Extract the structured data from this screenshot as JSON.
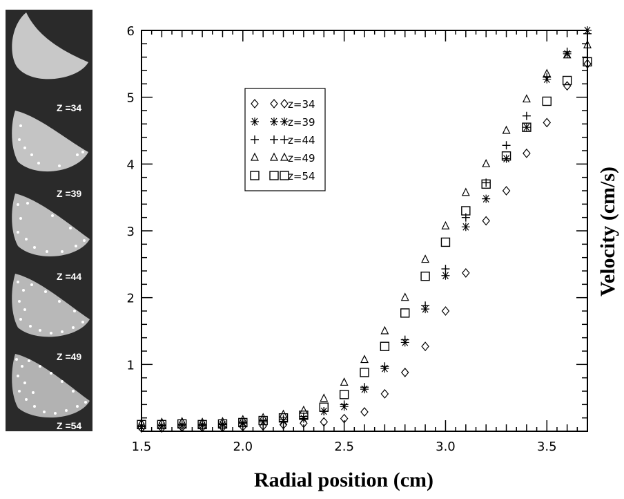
{
  "slice_labels": [
    "Z =34",
    "Z =39",
    "Z =44",
    "Z =49",
    "Z =54"
  ],
  "chart_data": {
    "type": "scatter",
    "title": "",
    "xlabel": "Radial position (cm)",
    "ylabel": "Velocity (cm/s)",
    "xlim": [
      1.5,
      3.7
    ],
    "ylim": [
      0,
      6
    ],
    "xticks": [
      "1.5",
      "2.0",
      "2.5",
      "3.0",
      "3.5"
    ],
    "yticks": [
      "1",
      "2",
      "3",
      "4",
      "5",
      "6"
    ],
    "legend_position": "upper-left",
    "grid": false,
    "x": [
      1.5,
      1.6,
      1.7,
      1.8,
      1.9,
      2.0,
      2.1,
      2.2,
      2.3,
      2.4,
      2.5,
      2.6,
      2.7,
      2.8,
      2.9,
      3.0,
      3.1,
      3.2,
      3.3,
      3.4,
      3.5,
      3.6,
      3.7
    ],
    "series": [
      {
        "name": "z=34",
        "marker": "diamond",
        "values": [
          0.05,
          0.05,
          0.06,
          0.06,
          0.06,
          0.07,
          0.08,
          0.1,
          0.12,
          0.14,
          0.19,
          0.29,
          0.56,
          0.88,
          1.27,
          1.8,
          2.37,
          3.15,
          3.6,
          4.16,
          4.62,
          5.17,
          5.5
        ]
      },
      {
        "name": "z=39",
        "marker": "star",
        "values": [
          0.07,
          0.08,
          0.09,
          0.09,
          0.1,
          0.12,
          0.14,
          0.15,
          0.19,
          0.3,
          0.37,
          0.63,
          0.94,
          1.33,
          1.83,
          2.33,
          3.06,
          3.48,
          4.08,
          4.55,
          5.27,
          5.65,
          6.0
        ]
      },
      {
        "name": "z=44",
        "marker": "plus",
        "values": [
          0.08,
          0.09,
          0.1,
          0.1,
          0.11,
          0.13,
          0.16,
          0.18,
          0.22,
          0.3,
          0.4,
          0.66,
          0.97,
          1.37,
          1.88,
          2.43,
          3.2,
          3.72,
          4.28,
          4.72,
          5.3,
          5.68,
          5.95
        ]
      },
      {
        "name": "z=49",
        "marker": "triangle",
        "values": [
          0.12,
          0.13,
          0.14,
          0.13,
          0.14,
          0.17,
          0.2,
          0.25,
          0.31,
          0.49,
          0.73,
          1.07,
          1.5,
          2.0,
          2.57,
          3.07,
          3.57,
          4.0,
          4.5,
          4.97,
          5.35,
          5.63,
          5.78
        ]
      },
      {
        "name": "z=54",
        "marker": "square",
        "values": [
          0.1,
          0.1,
          0.11,
          0.1,
          0.11,
          0.13,
          0.16,
          0.2,
          0.24,
          0.36,
          0.55,
          0.88,
          1.27,
          1.77,
          2.32,
          2.83,
          3.3,
          3.7,
          4.12,
          4.55,
          4.94,
          5.25,
          5.53
        ]
      }
    ]
  }
}
